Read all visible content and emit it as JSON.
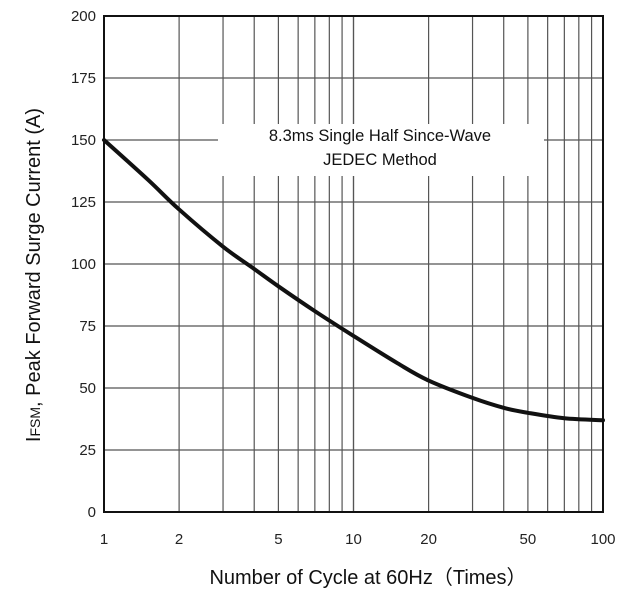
{
  "chart_data": {
    "type": "line",
    "title": "",
    "xlabel": "Number of Cycle at 60Hz（Times）",
    "ylabel_main": "I",
    "ylabel_sub": "FSM",
    "ylabel_rest": ", Peak Forward Surge Current (A)",
    "xscale": "log",
    "xlim": [
      1,
      100
    ],
    "ylim": [
      0,
      200
    ],
    "grid": true,
    "x_ticks": [
      1,
      2,
      5,
      10,
      20,
      50,
      100
    ],
    "x_tick_labels": [
      "1",
      "2",
      "5",
      "10",
      "20",
      "50",
      "100"
    ],
    "y_ticks": [
      0,
      25,
      50,
      75,
      100,
      125,
      150,
      175,
      200
    ],
    "y_tick_labels": [
      "0",
      "25",
      "50",
      "75",
      "100",
      "125",
      "150",
      "175",
      "200"
    ],
    "annotation": [
      "8.3ms Single Half Since-Wave",
      "JEDEC Method"
    ],
    "line_color": "#111111",
    "series": [
      {
        "x": [
          1,
          1.5,
          2,
          3,
          4,
          5,
          7,
          10,
          15,
          20,
          30,
          40,
          50,
          70,
          100
        ],
        "y": [
          150,
          134,
          122,
          107,
          98,
          91,
          81,
          71,
          60,
          53,
          46,
          42,
          40,
          37.8,
          37
        ]
      }
    ]
  }
}
